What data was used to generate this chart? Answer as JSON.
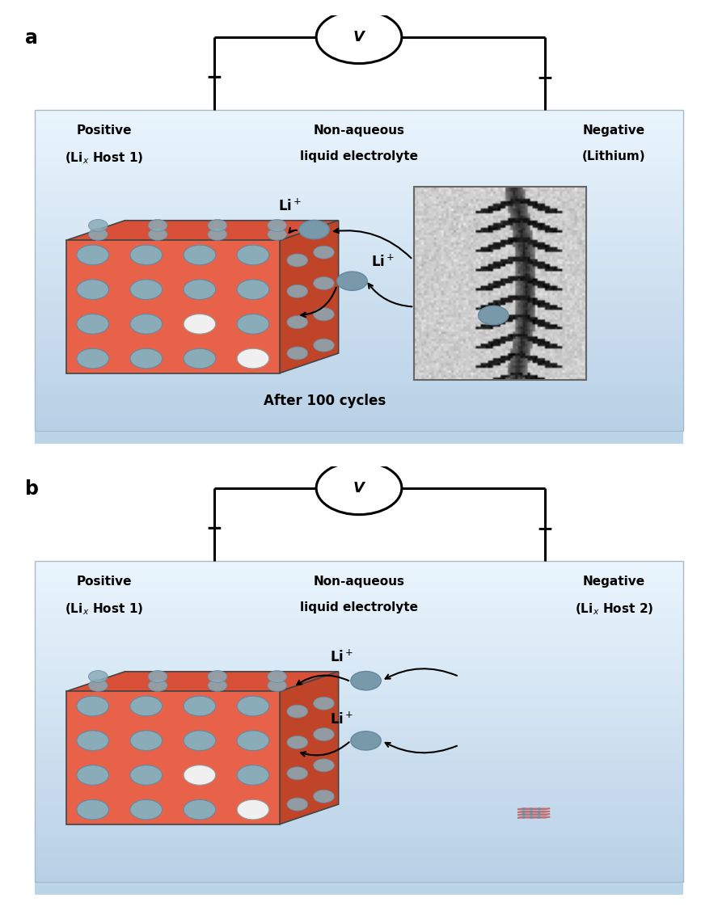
{
  "cube_face_color": "#e8624a",
  "cube_side_color": "#c04428",
  "cube_top_color": "#d85038",
  "circle_fill": "#8aabb8",
  "circle_edge": "#6688a0",
  "white_circle_fill": "#f0f0f0",
  "li_ion_color": "#7799aa",
  "layered_color": "#f0a8a8",
  "layered_edge": "#c07070",
  "label_a": "a",
  "label_b": "b",
  "plus_label": "+",
  "minus_label": "-",
  "voltmeter_label": "V",
  "cycles_label": "After 100 cycles",
  "bg_light": "#e8f4fc",
  "bg_dark": "#b8d4e8",
  "bg_very_light": "#f0f8ff"
}
